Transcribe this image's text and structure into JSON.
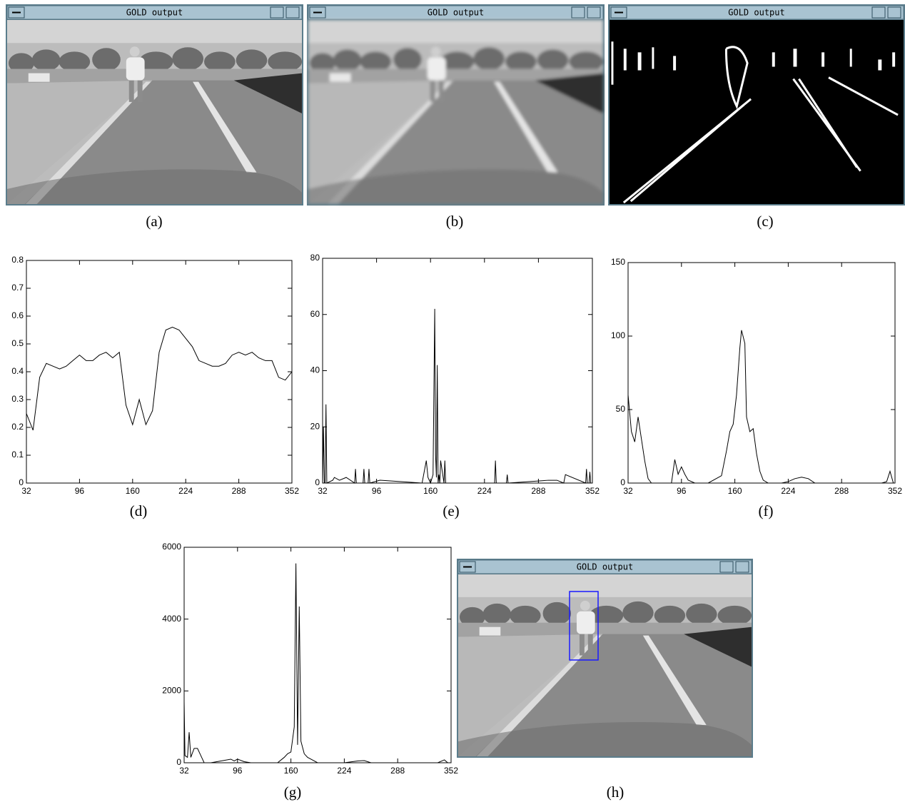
{
  "panels": [
    {
      "window_title": "GOLD output",
      "caption": "(a)"
    },
    {
      "window_title": "GOLD output",
      "caption": "(b)"
    },
    {
      "window_title": "GOLD output",
      "caption": "(c)"
    },
    {
      "window_title": "GOLD output",
      "caption": "(h)"
    }
  ],
  "chart_data": [
    {
      "type": "line",
      "caption": "(d)",
      "x": [
        32,
        40,
        48,
        56,
        64,
        72,
        80,
        88,
        96,
        104,
        112,
        120,
        128,
        136,
        144,
        152,
        160,
        168,
        176,
        184,
        192,
        200,
        208,
        216,
        224,
        232,
        240,
        248,
        256,
        264,
        272,
        280,
        288,
        296,
        304,
        312,
        320,
        328,
        336,
        344,
        352
      ],
      "values": [
        0.25,
        0.19,
        0.38,
        0.43,
        0.42,
        0.41,
        0.42,
        0.44,
        0.46,
        0.44,
        0.44,
        0.46,
        0.47,
        0.45,
        0.47,
        0.28,
        0.21,
        0.3,
        0.21,
        0.26,
        0.47,
        0.55,
        0.56,
        0.55,
        0.52,
        0.49,
        0.44,
        0.43,
        0.42,
        0.42,
        0.43,
        0.46,
        0.47,
        0.46,
        0.47,
        0.45,
        0.44,
        0.44,
        0.38,
        0.37,
        0.4
      ],
      "color": "#000000",
      "xlim": [
        32,
        352
      ],
      "xticks": [
        32,
        96,
        160,
        224,
        288,
        352
      ],
      "ylim": [
        0,
        0.8
      ],
      "yticks": [
        0,
        0.1,
        0.2,
        0.3,
        0.4,
        0.5,
        0.6,
        0.7,
        0.8
      ]
    },
    {
      "type": "line",
      "caption": "(e)",
      "x": [
        32,
        33,
        34,
        35,
        36,
        37,
        44,
        46,
        52,
        60,
        70,
        71,
        72,
        80,
        81,
        82,
        86,
        87,
        88,
        100,
        150,
        155,
        157,
        160,
        163,
        165,
        166,
        167,
        168,
        169,
        170,
        171,
        172,
        176,
        177,
        178,
        236,
        237,
        238,
        250,
        251,
        252,
        300,
        310,
        318,
        320,
        344,
        345,
        346,
        348,
        349,
        350,
        352
      ],
      "values": [
        0,
        20,
        0,
        0,
        28,
        0,
        1,
        2,
        1,
        2,
        0,
        5,
        0,
        0,
        5,
        0,
        0,
        5,
        0,
        1,
        0,
        8,
        2,
        0,
        3,
        62,
        10,
        2,
        42,
        0,
        3,
        0,
        8,
        0,
        8,
        0,
        0,
        8,
        0,
        0,
        3,
        0,
        1,
        1,
        0,
        3,
        0,
        5,
        0,
        0,
        4,
        0,
        0
      ],
      "color": "#000000",
      "xlim": [
        32,
        352
      ],
      "xticks": [
        32,
        96,
        160,
        224,
        288,
        352
      ],
      "ylim": [
        0,
        80
      ],
      "yticks": [
        0,
        20,
        40,
        60,
        80
      ]
    },
    {
      "type": "line",
      "caption": "(f)",
      "x": [
        32,
        36,
        40,
        44,
        48,
        52,
        56,
        60,
        72,
        84,
        88,
        92,
        96,
        100,
        104,
        112,
        128,
        144,
        150,
        154,
        158,
        162,
        166,
        168,
        172,
        174,
        178,
        182,
        186,
        190,
        194,
        200,
        216,
        224,
        232,
        240,
        248,
        256,
        304,
        336,
        342,
        346,
        350,
        352
      ],
      "values": [
        60,
        35,
        28,
        45,
        30,
        15,
        3,
        0,
        0,
        0,
        16,
        6,
        11,
        6,
        2,
        0,
        0,
        5,
        22,
        35,
        40,
        60,
        92,
        104,
        95,
        45,
        35,
        37,
        20,
        8,
        2,
        0,
        0,
        1,
        3,
        4,
        3,
        0,
        0,
        0,
        1,
        8,
        0,
        0
      ],
      "color": "#000000",
      "xlim": [
        32,
        352
      ],
      "xticks": [
        32,
        96,
        160,
        224,
        288,
        352
      ],
      "ylim": [
        0,
        150
      ],
      "yticks": [
        0,
        50,
        100,
        150
      ]
    },
    {
      "type": "line",
      "caption": "(g)",
      "x": [
        32,
        33,
        36,
        38,
        40,
        44,
        48,
        52,
        56,
        64,
        88,
        92,
        96,
        104,
        112,
        144,
        152,
        156,
        160,
        164,
        166,
        168,
        170,
        172,
        176,
        180,
        184,
        192,
        224,
        240,
        248,
        256,
        336,
        344,
        348,
        352
      ],
      "values": [
        1700,
        200,
        150,
        850,
        150,
        400,
        400,
        200,
        0,
        0,
        100,
        50,
        100,
        30,
        0,
        0,
        150,
        250,
        300,
        1000,
        5550,
        500,
        4350,
        600,
        250,
        150,
        100,
        0,
        0,
        50,
        60,
        0,
        0,
        80,
        0,
        0
      ],
      "color": "#000000",
      "xlim": [
        32,
        352
      ],
      "xticks": [
        32,
        96,
        160,
        224,
        288,
        352
      ],
      "ylim": [
        0,
        6000
      ],
      "yticks": [
        0,
        2000,
        4000,
        6000
      ]
    }
  ]
}
